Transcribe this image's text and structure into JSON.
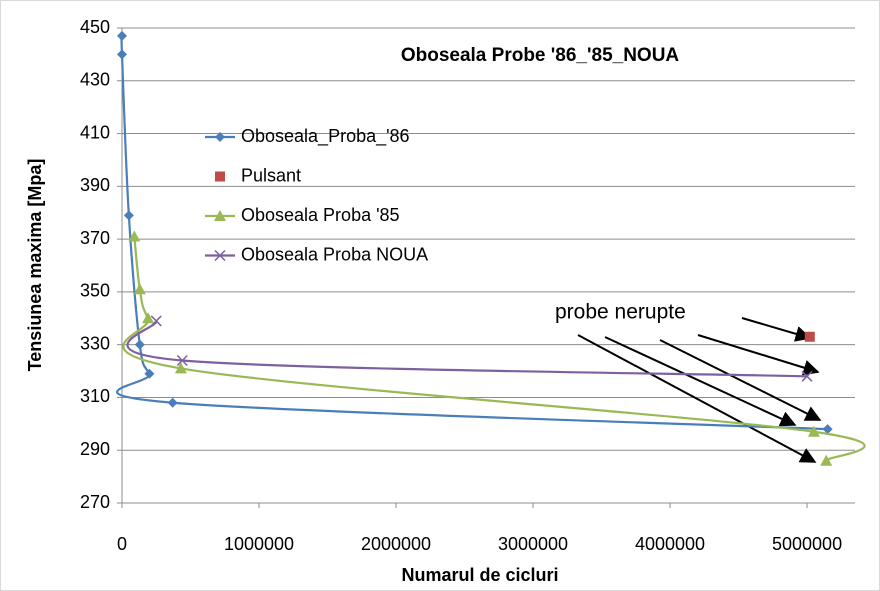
{
  "chart_data": {
    "type": "line",
    "title": "Oboseala Probe '86_'85_NOUA",
    "x_label": "Numarul de cicluri",
    "y_label": "Tensiunea maxima [Mpa]",
    "annotation": "probe nerupte",
    "xlim": [
      0,
      5350000
    ],
    "xticks": [
      0,
      1000000,
      2000000,
      3000000,
      4000000,
      5000000
    ],
    "ylim": [
      270,
      450
    ],
    "yticks": [
      270,
      290,
      310,
      330,
      350,
      370,
      390,
      410,
      430,
      450
    ],
    "grid": true,
    "legend": "upper left",
    "series": [
      {
        "name": "Oboseala_Proba_'86",
        "color": "#4a7ebb",
        "marker": "diamond",
        "x": [
          0,
          0,
          50000,
          130000,
          200000,
          370000,
          5150000
        ],
        "values": [
          447,
          440,
          379,
          330,
          319,
          308,
          298
        ]
      },
      {
        "name": "Pulsant",
        "color": "#be4b48",
        "marker": "square",
        "x": [
          5020000
        ],
        "values": [
          333
        ]
      },
      {
        "name": "Oboseala Proba '85",
        "color": "#98b954",
        "marker": "triangle",
        "x": [
          90000,
          130000,
          190000,
          430000,
          5050000,
          5140000
        ],
        "values": [
          371,
          351,
          340,
          321,
          297,
          286
        ]
      },
      {
        "name": "Oboseala Proba NOUA",
        "color": "#7d60a0",
        "marker": "x",
        "x": [
          250000,
          440000,
          5000000
        ],
        "values": [
          339,
          324,
          318
        ]
      }
    ]
  }
}
